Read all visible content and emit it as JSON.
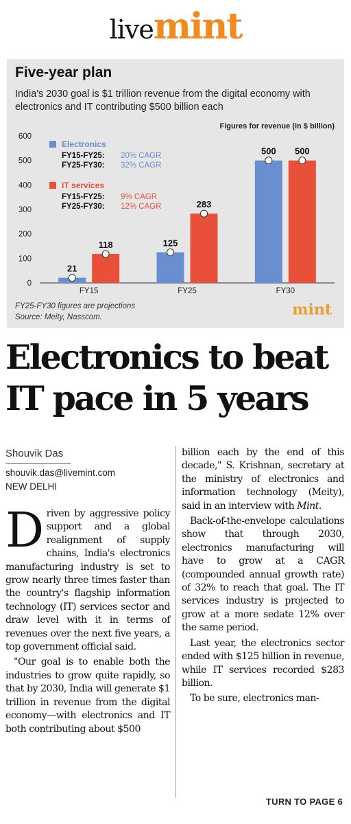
{
  "masthead": {
    "live": "live",
    "mint": "mint"
  },
  "chart": {
    "title": "Five-year plan",
    "subtitle": "India's 2030 goal is $1 trillion revenue from the digital economy with electronics and IT contributing $500 billion each",
    "note": "Figures for revenue (in $ billion)",
    "footnote_line1": "FY25-FY30 figures are projections",
    "footnote_line2": "Source: Meity, Nasscom.",
    "logo": "mint"
  },
  "chart_data": {
    "type": "bar",
    "categories": [
      "FY15",
      "FY25",
      "FY30"
    ],
    "series": [
      {
        "name": "Electronics",
        "color": "#6a8fd0",
        "values": [
          21,
          125,
          500
        ],
        "cagr": [
          {
            "period": "FY15-FY25:",
            "rate": "20% CAGR"
          },
          {
            "period": "FY25-FY30:",
            "rate": "32% CAGR"
          }
        ]
      },
      {
        "name": "IT services",
        "color": "#e9503a",
        "values": [
          118,
          283,
          500
        ],
        "cagr": [
          {
            "period": "FY15-FY25:",
            "rate": "9% CAGR"
          },
          {
            "period": "FY25-FY30:",
            "rate": "12% CAGR"
          }
        ]
      }
    ],
    "yticks": [
      "0",
      "100",
      "200",
      "300",
      "400",
      "500",
      "600"
    ],
    "ylim": [
      0,
      600
    ],
    "grid": false,
    "legend": "top-left"
  },
  "headline": "Electronics to beat IT pace in 5 years",
  "byline": "Shouvik Das",
  "email": "shouvik.das@livemint.com",
  "dateline": "NEW DELHI",
  "body": {
    "dropcap": "D",
    "p1": "riven by aggressive policy support and a global realignment of supply chains, India's electronics manufacturing industry is set to grow nearly three times faster than the country's flagship information technology (IT) services sector and draw level with it in terms of revenues over the next five years, a top government official said.",
    "p2": "\"Our goal is to enable both the industries to grow quite rapidly, so that by 2030, India will generate $1 trillion in revenue from the digital economy—with electronics and IT both contributing about $500",
    "p3a": "billion each by the end of this decade,\" S. Krishnan, secretary at the ministry of electronics and information technology (Meity), said in an interview with ",
    "p3b": "Mint",
    "p3c": ".",
    "p4": "Back-of-the-envelope calculations show that through 2030, electronics manufacturing will have to grow at a CAGR (compounded annual growth rate) of 32% to reach that goal. The IT services industry is projected to grow at a more sedate 12% over the same period.",
    "p5": "Last year, the electronics sector ended with $125 billion in revenue, while IT services recorded $283 billion.",
    "p6": "To be sure, electronics man-"
  },
  "turn": "TURN TO PAGE 6"
}
